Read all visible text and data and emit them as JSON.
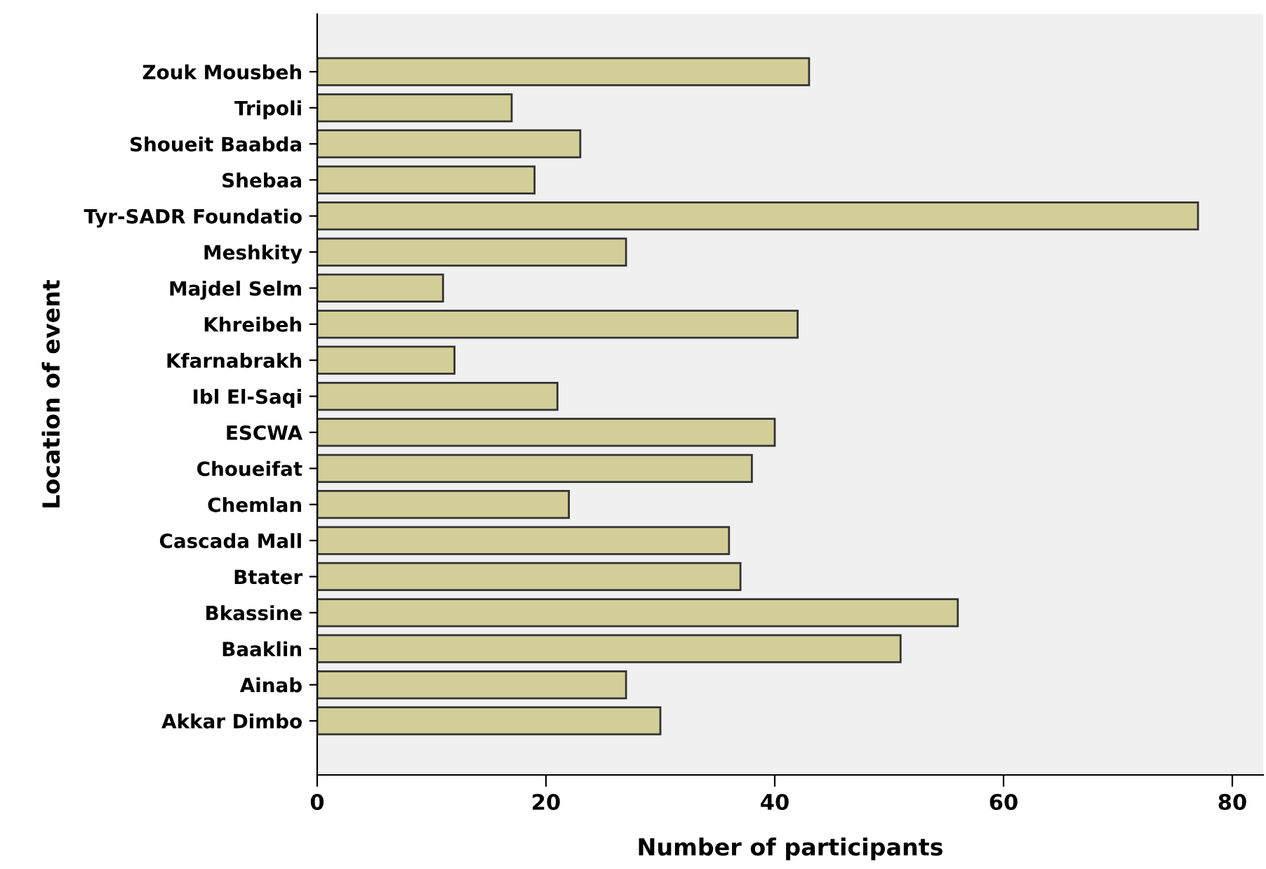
{
  "chart_data": {
    "type": "bar",
    "orientation": "horizontal",
    "xlabel": "Number of participants",
    "ylabel": "Location of event",
    "categories": [
      "Zouk Mousbeh",
      "Tripoli",
      "Shoueit Baabda",
      "Shebaa",
      "Tyr-SADR Foundatio",
      "Meshkity",
      "Majdel Selm",
      "Khreibeh",
      "Kfarnabrakh",
      "Ibl El-Saqi",
      "ESCWA",
      "Choueifat",
      "Chemlan",
      "Cascada Mall",
      "Btater",
      "Bkassine",
      "Baaklin",
      "Ainab",
      "Akkar Dimbo"
    ],
    "values": [
      43,
      17,
      23,
      19,
      77,
      27,
      11,
      42,
      12,
      21,
      40,
      38,
      22,
      36,
      37,
      56,
      51,
      27,
      30
    ],
    "color": "#d3ce97",
    "xlim": [
      0,
      82.7
    ],
    "xticks": [
      0,
      20,
      40,
      60,
      80
    ],
    "grid": false
  }
}
